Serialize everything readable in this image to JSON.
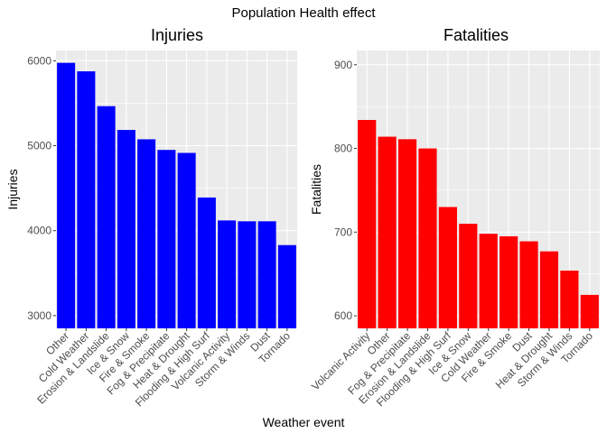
{
  "figure": {
    "title": "Population Health effect",
    "xlabel": "Weather event"
  },
  "chart_data": [
    {
      "type": "bar",
      "title": "Injuries",
      "xlabel": "Weather event",
      "ylabel": "Injuries",
      "color": "#0000FF",
      "categories": [
        "Other",
        "Cold Weather",
        "Erosion & Landslide",
        "Ice & Snow",
        "Fire & Smoke",
        "Fog & Precipitate",
        "Heat & Drought",
        "Flooding & High Surf",
        "Volcanic Activity",
        "Storm & Winds",
        "Dust",
        "Tornado"
      ],
      "values": [
        5975,
        5875,
        5465,
        5185,
        5075,
        4950,
        4915,
        4390,
        4120,
        4110,
        4110,
        3830
      ],
      "ylim": [
        2850,
        6120
      ],
      "yticks": [
        3000,
        4000,
        5000,
        6000
      ],
      "grid": true,
      "panel_background": "#EBEBEB"
    },
    {
      "type": "bar",
      "title": "Fatalities",
      "xlabel": "Weather event",
      "ylabel": "Fatalities",
      "color": "#FF0000",
      "categories": [
        "Volcanic Activity",
        "Other",
        "Fog & Precipitate",
        "Erosion & Landslide",
        "Flooding & High Surf",
        "Ice & Snow",
        "Cold Weather",
        "Fire & Smoke",
        "Dust",
        "Heat & Drought",
        "Storm & Winds",
        "Tornado"
      ],
      "values": [
        834,
        814,
        811,
        800,
        730,
        710,
        698,
        695,
        689,
        677,
        654,
        625
      ],
      "ylim": [
        585,
        917
      ],
      "yticks": [
        600,
        700,
        800,
        900
      ],
      "grid": true,
      "panel_background": "#EBEBEB"
    }
  ]
}
